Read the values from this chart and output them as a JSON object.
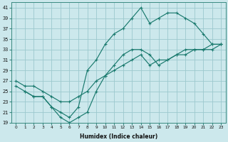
{
  "xlabel": "Humidex (Indice chaleur)",
  "bg_color": "#cce8ec",
  "grid_color": "#9cc8ce",
  "line_color": "#1a7a6e",
  "xlim": [
    -0.5,
    23.5
  ],
  "ylim": [
    19,
    42
  ],
  "xticks": [
    0,
    1,
    2,
    3,
    4,
    5,
    6,
    7,
    8,
    9,
    10,
    11,
    12,
    13,
    14,
    15,
    16,
    17,
    18,
    19,
    20,
    21,
    22,
    23
  ],
  "yticks": [
    19,
    21,
    23,
    25,
    27,
    29,
    31,
    33,
    35,
    37,
    39,
    41
  ],
  "line1_x": [
    0,
    1,
    2,
    3,
    4,
    5,
    6,
    7,
    8,
    9,
    10,
    11,
    12,
    13,
    14,
    15,
    16,
    17,
    18,
    19,
    20,
    21,
    22,
    23
  ],
  "line1_y": [
    26,
    25,
    24,
    24,
    22,
    21,
    20,
    22,
    29,
    31,
    34,
    36,
    37,
    39,
    41,
    38,
    39,
    40,
    40,
    39,
    38,
    36,
    34,
    34
  ],
  "line2_x": [
    1,
    2,
    3,
    4,
    5,
    6,
    7,
    8,
    9,
    10,
    11,
    12,
    13,
    14,
    15,
    16,
    17,
    18,
    19,
    20,
    21,
    22,
    23
  ],
  "line2_y": [
    25,
    24,
    24,
    22,
    20,
    19,
    20,
    21,
    25,
    28,
    30,
    32,
    33,
    33,
    32,
    30,
    31,
    32,
    33,
    33,
    33,
    33,
    34
  ],
  "line3_x": [
    0,
    1,
    2,
    3,
    4,
    5,
    6,
    7,
    8,
    9,
    10,
    11,
    12,
    13,
    14,
    15,
    16,
    17,
    18,
    19,
    20,
    21,
    22,
    23
  ],
  "line3_y": [
    27,
    26,
    26,
    25,
    24,
    23,
    23,
    24,
    25,
    27,
    28,
    29,
    30,
    31,
    32,
    30,
    31,
    31,
    32,
    32,
    33,
    33,
    34,
    34
  ]
}
